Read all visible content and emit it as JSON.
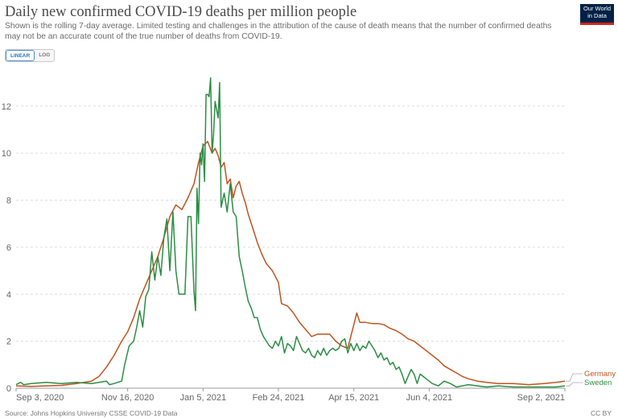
{
  "header": {
    "title": "Daily new confirmed COVID-19 deaths per million people",
    "subtitle": "Shown is the rolling 7-day average. Limited testing and challenges in the attribution of the cause of death means that the number of confirmed deaths may not be an accurate count of the true number of deaths from COVID-19.",
    "logo_line1": "Our World",
    "logo_line2": "in Data"
  },
  "controls": {
    "linear_label": "LINEAR",
    "log_label": "LOG"
  },
  "footer": {
    "source": "Source: Johns Hopkins University CSSE COVID-19 Data",
    "license": "CC BY"
  },
  "colors": {
    "germany": "#c0531f",
    "sweden": "#2c8d45",
    "grid": "#dddddd",
    "axis": "#666666"
  },
  "chart_data": {
    "type": "line",
    "title": "Daily new confirmed COVID-19 deaths per million people",
    "xlabel": "",
    "ylabel": "",
    "ylim": [
      0,
      13.5
    ],
    "xlim": [
      0,
      364
    ],
    "y_ticks": [
      0,
      2,
      4,
      6,
      8,
      10,
      12
    ],
    "x_ticks": [
      {
        "label": "Sep 3, 2020",
        "day": 0
      },
      {
        "label": "Nov 16, 2020",
        "day": 74
      },
      {
        "label": "Jan 5, 2021",
        "day": 124
      },
      {
        "label": "Feb 24, 2021",
        "day": 174
      },
      {
        "label": "Apr 15, 2021",
        "day": 224
      },
      {
        "label": "Jun 4, 2021",
        "day": 274
      },
      {
        "label": "Sep 2, 2021",
        "day": 364
      }
    ],
    "grid": true,
    "legend": "right, at line ends",
    "series": [
      {
        "name": "Germany",
        "color": "#c0531f",
        "points": [
          [
            0,
            0.1
          ],
          [
            10,
            0.08
          ],
          [
            20,
            0.1
          ],
          [
            30,
            0.12
          ],
          [
            40,
            0.2
          ],
          [
            50,
            0.3
          ],
          [
            55,
            0.5
          ],
          [
            60,
            0.9
          ],
          [
            65,
            1.4
          ],
          [
            70,
            2.0
          ],
          [
            74,
            2.4
          ],
          [
            78,
            3.0
          ],
          [
            82,
            3.8
          ],
          [
            86,
            4.4
          ],
          [
            90,
            5.0
          ],
          [
            94,
            5.6
          ],
          [
            98,
            6.4
          ],
          [
            102,
            7.3
          ],
          [
            106,
            7.8
          ],
          [
            110,
            7.6
          ],
          [
            114,
            8.1
          ],
          [
            118,
            8.7
          ],
          [
            121,
            9.6
          ],
          [
            124,
            10.3
          ],
          [
            127,
            10.5
          ],
          [
            130,
            10.0
          ],
          [
            132,
            10.2
          ],
          [
            134,
            9.9
          ],
          [
            136,
            9.4
          ],
          [
            138,
            9.6
          ],
          [
            140,
            8.7
          ],
          [
            142,
            8.9
          ],
          [
            144,
            8.1
          ],
          [
            146,
            8.6
          ],
          [
            148,
            8.8
          ],
          [
            150,
            8.3
          ],
          [
            152,
            7.9
          ],
          [
            154,
            7.4
          ],
          [
            157,
            6.8
          ],
          [
            160,
            6.2
          ],
          [
            163,
            5.7
          ],
          [
            166,
            5.3
          ],
          [
            170,
            5.0
          ],
          [
            174,
            4.5
          ],
          [
            176,
            3.6
          ],
          [
            180,
            3.5
          ],
          [
            184,
            3.2
          ],
          [
            188,
            2.8
          ],
          [
            192,
            2.5
          ],
          [
            196,
            2.2
          ],
          [
            200,
            2.3
          ],
          [
            204,
            2.3
          ],
          [
            208,
            2.3
          ],
          [
            212,
            2.0
          ],
          [
            216,
            1.8
          ],
          [
            220,
            1.7
          ],
          [
            222,
            2.2
          ],
          [
            224,
            2.7
          ],
          [
            226,
            3.2
          ],
          [
            228,
            2.8
          ],
          [
            232,
            2.8
          ],
          [
            236,
            2.75
          ],
          [
            240,
            2.75
          ],
          [
            244,
            2.7
          ],
          [
            248,
            2.55
          ],
          [
            252,
            2.45
          ],
          [
            256,
            2.3
          ],
          [
            260,
            2.1
          ],
          [
            264,
            2.0
          ],
          [
            268,
            1.8
          ],
          [
            272,
            1.6
          ],
          [
            276,
            1.4
          ],
          [
            280,
            1.2
          ],
          [
            284,
            0.95
          ],
          [
            288,
            0.8
          ],
          [
            292,
            0.65
          ],
          [
            296,
            0.5
          ],
          [
            300,
            0.4
          ],
          [
            306,
            0.3
          ],
          [
            312,
            0.25
          ],
          [
            320,
            0.2
          ],
          [
            330,
            0.2
          ],
          [
            340,
            0.15
          ],
          [
            350,
            0.2
          ],
          [
            358,
            0.25
          ],
          [
            364,
            0.3
          ]
        ]
      },
      {
        "name": "Sweden",
        "color": "#2c8d45",
        "points": [
          [
            0,
            0.15
          ],
          [
            3,
            0.25
          ],
          [
            5,
            0.15
          ],
          [
            10,
            0.2
          ],
          [
            20,
            0.25
          ],
          [
            30,
            0.2
          ],
          [
            40,
            0.25
          ],
          [
            50,
            0.2
          ],
          [
            55,
            0.25
          ],
          [
            60,
            0.3
          ],
          [
            62,
            0.15
          ],
          [
            65,
            0.2
          ],
          [
            70,
            0.3
          ],
          [
            72,
            1.0
          ],
          [
            75,
            1.8
          ],
          [
            78,
            2.0
          ],
          [
            80,
            2.6
          ],
          [
            82,
            3.3
          ],
          [
            84,
            2.6
          ],
          [
            86,
            3.9
          ],
          [
            88,
            4.2
          ],
          [
            90,
            5.8
          ],
          [
            92,
            4.6
          ],
          [
            94,
            5.6
          ],
          [
            96,
            4.8
          ],
          [
            98,
            6.4
          ],
          [
            100,
            7.2
          ],
          [
            102,
            5.0
          ],
          [
            104,
            7.5
          ],
          [
            106,
            5.0
          ],
          [
            108,
            4.0
          ],
          [
            110,
            4.0
          ],
          [
            112,
            4.0
          ],
          [
            114,
            7.3
          ],
          [
            116,
            7.3
          ],
          [
            118,
            4.1
          ],
          [
            119,
            3.3
          ],
          [
            120,
            8.5
          ],
          [
            121,
            7.0
          ],
          [
            122,
            10.0
          ],
          [
            123,
            9.5
          ],
          [
            124,
            10.4
          ],
          [
            125,
            8.8
          ],
          [
            126,
            12.5
          ],
          [
            127,
            12.5
          ],
          [
            128,
            12.4
          ],
          [
            129,
            13.2
          ],
          [
            130,
            10.0
          ],
          [
            131,
            10.8
          ],
          [
            132,
            12.2
          ],
          [
            134,
            11.5
          ],
          [
            135,
            13.0
          ],
          [
            136,
            7.7
          ],
          [
            138,
            8.3
          ],
          [
            140,
            7.5
          ],
          [
            142,
            8.7
          ],
          [
            144,
            7.5
          ],
          [
            146,
            7.3
          ],
          [
            148,
            5.6
          ],
          [
            150,
            5.0
          ],
          [
            152,
            4.3
          ],
          [
            154,
            3.7
          ],
          [
            156,
            3.4
          ],
          [
            158,
            3.0
          ],
          [
            160,
            3.0
          ],
          [
            162,
            2.5
          ],
          [
            164,
            2.2
          ],
          [
            166,
            2.0
          ],
          [
            168,
            1.8
          ],
          [
            170,
            1.7
          ],
          [
            172,
            2.0
          ],
          [
            174,
            1.8
          ],
          [
            176,
            2.2
          ],
          [
            178,
            1.5
          ],
          [
            180,
            1.9
          ],
          [
            182,
            1.8
          ],
          [
            184,
            1.6
          ],
          [
            186,
            2.2
          ],
          [
            188,
            1.9
          ],
          [
            190,
            1.6
          ],
          [
            192,
            1.5
          ],
          [
            194,
            1.7
          ],
          [
            196,
            1.4
          ],
          [
            198,
            1.3
          ],
          [
            200,
            1.6
          ],
          [
            202,
            1.4
          ],
          [
            204,
            1.7
          ],
          [
            206,
            1.4
          ],
          [
            208,
            1.6
          ],
          [
            210,
            1.7
          ],
          [
            212,
            1.6
          ],
          [
            214,
            1.7
          ],
          [
            216,
            2.0
          ],
          [
            218,
            2.1
          ],
          [
            220,
            1.5
          ],
          [
            222,
            1.9
          ],
          [
            224,
            1.6
          ],
          [
            226,
            1.9
          ],
          [
            228,
            1.6
          ],
          [
            230,
            1.8
          ],
          [
            232,
            1.7
          ],
          [
            234,
            2.0
          ],
          [
            236,
            1.8
          ],
          [
            238,
            1.6
          ],
          [
            240,
            1.3
          ],
          [
            242,
            1.5
          ],
          [
            244,
            1.2
          ],
          [
            246,
            1.3
          ],
          [
            248,
            1.0
          ],
          [
            250,
            1.1
          ],
          [
            252,
            0.8
          ],
          [
            254,
            0.9
          ],
          [
            256,
            0.6
          ],
          [
            258,
            0.2
          ],
          [
            260,
            0.5
          ],
          [
            262,
            0.8
          ],
          [
            264,
            0.6
          ],
          [
            266,
            0.2
          ],
          [
            268,
            0.6
          ],
          [
            270,
            0.5
          ],
          [
            272,
            0.4
          ],
          [
            274,
            0.3
          ],
          [
            276,
            0.2
          ],
          [
            280,
            0.1
          ],
          [
            284,
            0.3
          ],
          [
            288,
            0.2
          ],
          [
            292,
            0.05
          ],
          [
            296,
            0.1
          ],
          [
            300,
            0.15
          ],
          [
            306,
            0.1
          ],
          [
            312,
            0.05
          ],
          [
            320,
            0.1
          ],
          [
            330,
            0.05
          ],
          [
            340,
            0.05
          ],
          [
            350,
            0.05
          ],
          [
            358,
            0.05
          ],
          [
            364,
            0.1
          ]
        ]
      }
    ]
  }
}
